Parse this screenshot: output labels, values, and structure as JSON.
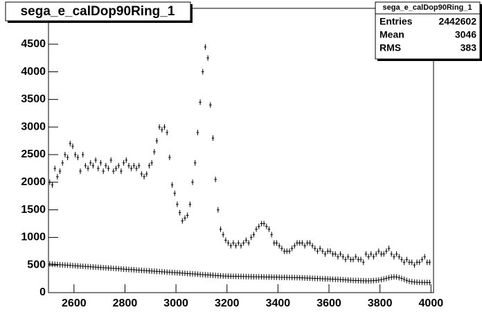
{
  "chart_data": {
    "type": "errorbar",
    "title": "sega_e_calDop90Ring_1",
    "stats": {
      "title": "sega_e_calDop90Ring_1",
      "rows": [
        [
          "Entries",
          "2442602"
        ],
        [
          "Mean",
          "3046"
        ],
        [
          "RMS",
          "383"
        ]
      ]
    },
    "x": [
      2505,
      2515,
      2525,
      2535,
      2545,
      2555,
      2565,
      2575,
      2585,
      2595,
      2605,
      2615,
      2625,
      2635,
      2645,
      2655,
      2665,
      2675,
      2685,
      2695,
      2705,
      2715,
      2725,
      2735,
      2745,
      2755,
      2765,
      2775,
      2785,
      2795,
      2805,
      2815,
      2825,
      2835,
      2845,
      2855,
      2865,
      2875,
      2885,
      2895,
      2905,
      2915,
      2925,
      2935,
      2945,
      2955,
      2965,
      2975,
      2985,
      2995,
      3005,
      3015,
      3025,
      3035,
      3045,
      3055,
      3065,
      3075,
      3085,
      3095,
      3105,
      3115,
      3125,
      3135,
      3145,
      3155,
      3165,
      3175,
      3185,
      3195,
      3205,
      3215,
      3225,
      3235,
      3245,
      3255,
      3265,
      3275,
      3285,
      3295,
      3305,
      3315,
      3325,
      3335,
      3345,
      3355,
      3365,
      3375,
      3385,
      3395,
      3405,
      3415,
      3425,
      3435,
      3445,
      3455,
      3465,
      3475,
      3485,
      3495,
      3505,
      3515,
      3525,
      3535,
      3545,
      3555,
      3565,
      3575,
      3585,
      3595,
      3605,
      3615,
      3625,
      3635,
      3645,
      3655,
      3665,
      3675,
      3685,
      3695,
      3705,
      3715,
      3725,
      3735,
      3745,
      3755,
      3765,
      3775,
      3785,
      3795,
      3805,
      3815,
      3825,
      3835,
      3845,
      3855,
      3865,
      3875,
      3885,
      3895,
      3905,
      3915,
      3925,
      3935,
      3945,
      3955,
      3965,
      3975,
      3985,
      3995
    ],
    "series": [
      {
        "color": "#000000",
        "values": [
          2000,
          1950,
          2250,
          2100,
          2200,
          2350,
          2500,
          2450,
          2700,
          2650,
          2500,
          2450,
          2200,
          2500,
          2300,
          2250,
          2350,
          2300,
          2400,
          2250,
          2350,
          2200,
          2300,
          2250,
          2400,
          2200,
          2250,
          2300,
          2200,
          2350,
          2400,
          2300,
          2250,
          2300,
          2250,
          2300,
          2150,
          2100,
          2150,
          2300,
          2350,
          2550,
          2750,
          3000,
          2950,
          3000,
          2900,
          2450,
          1950,
          1800,
          1600,
          1450,
          1300,
          1350,
          1400,
          1600,
          2000,
          2350,
          2900,
          3450,
          4000,
          4450,
          4250,
          3400,
          2800,
          2050,
          1500,
          1150,
          1050,
          950,
          900,
          850,
          900,
          850,
          900,
          850,
          900,
          950,
          900,
          1000,
          1050,
          1150,
          1200,
          1250,
          1250,
          1200,
          1150,
          1050,
          900,
          900,
          850,
          800,
          750,
          750,
          750,
          800,
          850,
          900,
          900,
          900,
          850,
          900,
          900,
          850,
          800,
          750,
          800,
          750,
          700,
          750,
          750,
          700,
          700,
          650,
          700,
          650,
          600,
          650,
          600,
          600,
          650,
          600,
          600,
          550,
          700,
          650,
          700,
          650,
          700,
          750,
          700,
          700,
          750,
          800,
          700,
          650,
          700,
          650,
          600,
          550,
          600,
          550,
          550,
          500,
          550,
          550,
          600,
          650,
          550,
          550
        ]
      },
      {
        "color": "#000000",
        "values": [
          520,
          516,
          513,
          510,
          506,
          503,
          500,
          497,
          494,
          490,
          487,
          484,
          481,
          478,
          474,
          471,
          468,
          465,
          462,
          458,
          455,
          452,
          449,
          446,
          442,
          439,
          436,
          433,
          430,
          426,
          423,
          420,
          417,
          414,
          410,
          407,
          404,
          401,
          398,
          394,
          391,
          388,
          385,
          382,
          378,
          375,
          372,
          369,
          366,
          362,
          359,
          356,
          353,
          350,
          346,
          343,
          340,
          337,
          334,
          330,
          327,
          324,
          321,
          318,
          314,
          311,
          308,
          305,
          302,
          300,
          298,
          297,
          296,
          295,
          294,
          293,
          292,
          291,
          290,
          289,
          288,
          287,
          286,
          285,
          284,
          283,
          282,
          281,
          280,
          279,
          278,
          277,
          276,
          275,
          274,
          273,
          272,
          271,
          270,
          268,
          266,
          264,
          262,
          260,
          258,
          256,
          254,
          252,
          250,
          248,
          246,
          244,
          242,
          240,
          237,
          234,
          231,
          228,
          225,
          222,
          220,
          218,
          216,
          215,
          214,
          214,
          215,
          218,
          222,
          228,
          236,
          246,
          258,
          270,
          280,
          285,
          282,
          272,
          258,
          240,
          222,
          208,
          198,
          192,
          188,
          186,
          185,
          184,
          183,
          182
        ]
      }
    ],
    "xlim": [
      2500,
      4010
    ],
    "ylim": [
      0,
      5150
    ],
    "xticks": [
      2600,
      2800,
      3000,
      3200,
      3400,
      3600,
      3800,
      4000
    ],
    "yticks": [
      0,
      500,
      1000,
      1500,
      2000,
      2500,
      3000,
      3500,
      4000,
      4500
    ]
  }
}
